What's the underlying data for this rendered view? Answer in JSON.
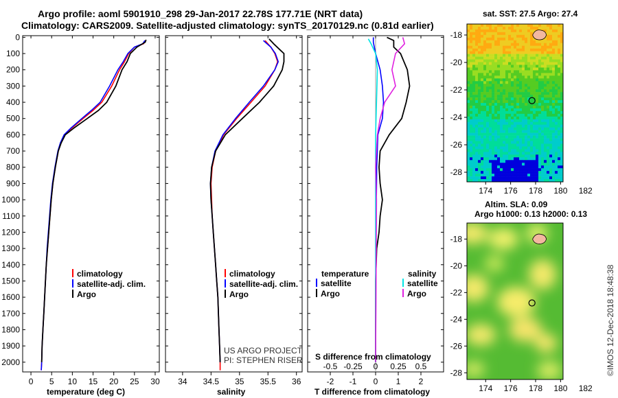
{
  "titles": {
    "line1": "Argo profile: aoml 5901910_298 29-Jan-2017 22.78S 177.71E (NRT data)",
    "line2": "Climatology: CARS2009. Satellite-adjusted climatology: synTS_20170129.nc (0.81d earlier)"
  },
  "depth_ticks": [
    "0",
    "100",
    "200",
    "300",
    "400",
    "500",
    "600",
    "700",
    "800",
    "900",
    "1000",
    "1100",
    "1200",
    "1300",
    "1400",
    "1500",
    "1600",
    "1700",
    "1800",
    "1900",
    "2000"
  ],
  "depth_values": [
    0,
    100,
    200,
    300,
    400,
    500,
    600,
    700,
    800,
    900,
    1000,
    1100,
    1200,
    1300,
    1400,
    1500,
    1600,
    1700,
    1800,
    1900,
    2000
  ],
  "colors": {
    "red": "#ff0000",
    "blue": "#0000ff",
    "black": "#000000",
    "cyan": "#00e5e5",
    "magenta": "#e020e0"
  },
  "chart_data": [
    {
      "type": "line",
      "name": "temperature",
      "xlabel": "temperature (deg C)",
      "ylabel": "",
      "xlim": [
        -2,
        31
      ],
      "ylim": [
        2060,
        -10
      ],
      "y_inverted": true,
      "x_ticks": [
        0,
        5,
        10,
        15,
        20,
        25,
        30
      ],
      "x_tick_labels": [
        "0",
        "5",
        "10",
        "15",
        "20",
        "25",
        "30"
      ],
      "legend": {
        "position": "center-right",
        "entries": [
          "climatology",
          "satellite-adj. clim.",
          "Argo"
        ]
      },
      "series": [
        {
          "name": "climatology",
          "color": "red",
          "points": [
            [
              27.6,
              20
            ],
            [
              27.2,
              40
            ],
            [
              25.0,
              60
            ],
            [
              23.6,
              100
            ],
            [
              22.6,
              150
            ],
            [
              21.4,
              200
            ],
            [
              19.5,
              300
            ],
            [
              17.1,
              400
            ],
            [
              15.0,
              450
            ],
            [
              12.6,
              500
            ],
            [
              9.8,
              560
            ],
            [
              8.1,
              600
            ],
            [
              7.2,
              650
            ],
            [
              6.6,
              700
            ],
            [
              5.9,
              800
            ],
            [
              5.3,
              900
            ],
            [
              4.9,
              1000
            ],
            [
              4.6,
              1100
            ],
            [
              4.3,
              1200
            ],
            [
              4.0,
              1300
            ],
            [
              3.7,
              1400
            ],
            [
              3.5,
              1500
            ],
            [
              3.3,
              1600
            ],
            [
              3.1,
              1700
            ],
            [
              2.9,
              1800
            ],
            [
              2.7,
              1900
            ],
            [
              2.6,
              2000
            ],
            [
              2.5,
              2050
            ]
          ]
        },
        {
          "name": "satellite-adj. clim.",
          "color": "blue",
          "points": [
            [
              27.5,
              20
            ],
            [
              27.0,
              40
            ],
            [
              25.0,
              60
            ],
            [
              23.4,
              100
            ],
            [
              22.3,
              150
            ],
            [
              21.0,
              200
            ],
            [
              19.0,
              300
            ],
            [
              16.7,
              400
            ],
            [
              14.6,
              450
            ],
            [
              12.3,
              500
            ],
            [
              9.6,
              560
            ],
            [
              8.0,
              600
            ],
            [
              7.1,
              650
            ],
            [
              6.5,
              700
            ],
            [
              5.8,
              800
            ],
            [
              5.2,
              900
            ],
            [
              4.8,
              1000
            ],
            [
              4.5,
              1100
            ],
            [
              4.2,
              1200
            ],
            [
              3.9,
              1300
            ],
            [
              3.7,
              1400
            ],
            [
              3.5,
              1500
            ],
            [
              3.3,
              1600
            ],
            [
              3.1,
              1700
            ],
            [
              2.9,
              1800
            ],
            [
              2.7,
              1900
            ],
            [
              2.6,
              2000
            ],
            [
              2.5,
              2050
            ]
          ]
        },
        {
          "name": "Argo",
          "color": "black",
          "points": [
            [
              27.8,
              15
            ],
            [
              27.6,
              30
            ],
            [
              25.6,
              60
            ],
            [
              24.0,
              100
            ],
            [
              23.2,
              150
            ],
            [
              22.0,
              200
            ],
            [
              20.5,
              300
            ],
            [
              18.3,
              400
            ],
            [
              16.3,
              450
            ],
            [
              13.6,
              500
            ],
            [
              10.3,
              560
            ],
            [
              8.3,
              600
            ],
            [
              7.3,
              650
            ],
            [
              6.6,
              700
            ],
            [
              5.9,
              800
            ],
            [
              5.3,
              900
            ],
            [
              4.9,
              1000
            ],
            [
              4.6,
              1100
            ],
            [
              4.3,
              1200
            ],
            [
              4.0,
              1300
            ],
            [
              3.7,
              1400
            ],
            [
              3.5,
              1500
            ],
            [
              3.3,
              1600
            ],
            [
              3.1,
              1700
            ],
            [
              2.9,
              1800
            ],
            [
              2.7,
              1900
            ],
            [
              2.6,
              2000
            ]
          ]
        }
      ]
    },
    {
      "type": "line",
      "name": "salinity",
      "xlabel": "salinity",
      "ylabel": "",
      "xlim": [
        33.7,
        36.1
      ],
      "ylim": [
        2060,
        -10
      ],
      "y_inverted": true,
      "x_ticks": [
        34,
        34.5,
        35,
        35.5,
        36
      ],
      "x_tick_labels": [
        "34",
        "34.5",
        "35",
        "35.5",
        "36"
      ],
      "legend": {
        "position": "center-right",
        "entries": [
          "climatology",
          "satellite-adj. clim.",
          "Argo"
        ]
      },
      "series": [
        {
          "name": "climatology",
          "color": "red",
          "points": [
            [
              35.45,
              20
            ],
            [
              35.55,
              60
            ],
            [
              35.62,
              100
            ],
            [
              35.67,
              150
            ],
            [
              35.62,
              200
            ],
            [
              35.45,
              300
            ],
            [
              35.2,
              400
            ],
            [
              34.95,
              500
            ],
            [
              34.72,
              600
            ],
            [
              34.58,
              700
            ],
            [
              34.52,
              800
            ],
            [
              34.5,
              900
            ],
            [
              34.51,
              1000
            ],
            [
              34.52,
              1100
            ],
            [
              34.54,
              1200
            ],
            [
              34.56,
              1300
            ],
            [
              34.58,
              1400
            ],
            [
              34.6,
              1500
            ],
            [
              34.62,
              1600
            ],
            [
              34.63,
              1700
            ],
            [
              34.64,
              1800
            ],
            [
              34.65,
              1900
            ],
            [
              34.66,
              2000
            ],
            [
              34.66,
              2050
            ]
          ]
        },
        {
          "name": "satellite-adj. clim.",
          "color": "blue",
          "points": [
            [
              35.42,
              20
            ],
            [
              35.55,
              60
            ],
            [
              35.63,
              100
            ],
            [
              35.68,
              150
            ],
            [
              35.62,
              200
            ],
            [
              35.42,
              300
            ],
            [
              35.17,
              400
            ],
            [
              34.93,
              500
            ],
            [
              34.71,
              600
            ],
            [
              34.57,
              700
            ],
            [
              34.51,
              800
            ],
            [
              34.49,
              900
            ],
            [
              34.5,
              1000
            ],
            [
              34.52,
              1100
            ],
            [
              34.54,
              1200
            ],
            [
              34.56,
              1300
            ],
            [
              34.58,
              1400
            ],
            [
              34.6,
              1500
            ],
            [
              34.62,
              1600
            ],
            [
              34.63,
              1700
            ],
            [
              34.64,
              1800
            ],
            [
              34.65,
              1900
            ],
            [
              34.66,
              2000
            ]
          ]
        },
        {
          "name": "Argo",
          "color": "black",
          "points": [
            [
              35.52,
              10
            ],
            [
              35.6,
              40
            ],
            [
              35.72,
              80
            ],
            [
              35.78,
              100
            ],
            [
              35.78,
              150
            ],
            [
              35.75,
              200
            ],
            [
              35.6,
              300
            ],
            [
              35.35,
              400
            ],
            [
              35.05,
              500
            ],
            [
              34.75,
              600
            ],
            [
              34.58,
              700
            ],
            [
              34.51,
              800
            ],
            [
              34.49,
              900
            ],
            [
              34.5,
              1000
            ],
            [
              34.52,
              1100
            ],
            [
              34.54,
              1200
            ],
            [
              34.56,
              1300
            ],
            [
              34.58,
              1400
            ],
            [
              34.6,
              1500
            ],
            [
              34.62,
              1600
            ],
            [
              34.63,
              1700
            ],
            [
              34.64,
              1800
            ],
            [
              34.65,
              1900
            ],
            [
              34.66,
              2000
            ]
          ]
        }
      ]
    },
    {
      "type": "line",
      "name": "difference",
      "xlabel": "T difference from climatology",
      "secondary_xlabel": "S difference from climatology",
      "ylabel": "",
      "xlim": [
        -3,
        3
      ],
      "ylim": [
        2060,
        -10
      ],
      "y_inverted": true,
      "x_ticks": [
        -2,
        -1,
        0,
        1,
        2
      ],
      "x_tick_labels": [
        "-2",
        "-1",
        "0",
        "1",
        "2"
      ],
      "s_ticks": [
        -0.5,
        -0.25,
        0,
        0.25,
        0.5
      ],
      "s_tick_labels": [
        "-0.5",
        "-0.25",
        "0",
        "0.25",
        "0.5"
      ],
      "legend": {
        "position": "lower-center",
        "temperature_title": "temperature",
        "salinity_title": "salinity",
        "entries": [
          "satellite",
          "Argo",
          "satellite",
          "Argo"
        ]
      },
      "series": [
        {
          "name": "T satellite",
          "color": "blue",
          "points": [
            [
              -0.1,
              0
            ],
            [
              -0.1,
              30
            ],
            [
              0.0,
              100
            ],
            [
              0.2,
              200
            ],
            [
              0.3,
              300
            ],
            [
              0.35,
              400
            ],
            [
              0.3,
              500
            ],
            [
              0.1,
              600
            ],
            [
              0.05,
              800
            ],
            [
              0.02,
              1200
            ],
            [
              0.0,
              2000
            ]
          ]
        },
        {
          "name": "T Argo",
          "color": "black",
          "points": [
            [
              0.5,
              0
            ],
            [
              0.8,
              20
            ],
            [
              0.8,
              60
            ],
            [
              1.1,
              100
            ],
            [
              1.4,
              200
            ],
            [
              1.5,
              300
            ],
            [
              1.35,
              400
            ],
            [
              1.15,
              500
            ],
            [
              0.6,
              600
            ],
            [
              0.2,
              700
            ],
            [
              0.15,
              800
            ],
            [
              0.2,
              900
            ],
            [
              0.3,
              1000
            ],
            [
              0.2,
              1100
            ],
            [
              0.15,
              1200
            ],
            [
              0.05,
              1300
            ],
            [
              0.0,
              1500
            ],
            [
              0.0,
              2000
            ]
          ]
        },
        {
          "name": "S satellite",
          "color": "cyan",
          "points": [
            [
              -0.08,
              10
            ],
            [
              -0.05,
              40
            ],
            [
              0.0,
              100
            ],
            [
              0.02,
              200
            ],
            [
              0.01,
              400
            ],
            [
              0.0,
              600
            ],
            [
              0.0,
              1000
            ],
            [
              0.0,
              2000
            ]
          ]
        },
        {
          "name": "S Argo",
          "color": "magenta",
          "points": [
            [
              0.3,
              0
            ],
            [
              0.32,
              40
            ],
            [
              0.22,
              100
            ],
            [
              0.18,
              200
            ],
            [
              0.22,
              300
            ],
            [
              0.1,
              400
            ],
            [
              0.05,
              500
            ],
            [
              0.02,
              600
            ],
            [
              0.0,
              800
            ],
            [
              0.01,
              1000
            ],
            [
              0.0,
              2000
            ]
          ]
        }
      ]
    }
  ],
  "legend_labels": {
    "climatology": "climatology",
    "sat_adj": "satellite-adj. clim.",
    "argo": "Argo",
    "temperature": "temperature",
    "salinity": "salinity",
    "satellite": "satellite"
  },
  "credits": {
    "project": "US ARGO PROJECT",
    "pi": "PI: STEPHEN RISER",
    "imos": "©IMOS 12-Dec-2018 18:48:38"
  },
  "maps": {
    "lon_ticks": [
      "174",
      "176",
      "178",
      "180",
      "182"
    ],
    "lat_ticks": [
      "-18",
      "-20",
      "-22",
      "-24",
      "-26",
      "-28"
    ],
    "float_lon": 177.71,
    "float_lat": -22.78,
    "sst": {
      "title": "sat. SST: 27.5 Argo: 27.4"
    },
    "sla": {
      "title1": "Altim. SLA: 0.09",
      "title2": "Argo h1000: 0.13 h2000: 0.13"
    }
  }
}
